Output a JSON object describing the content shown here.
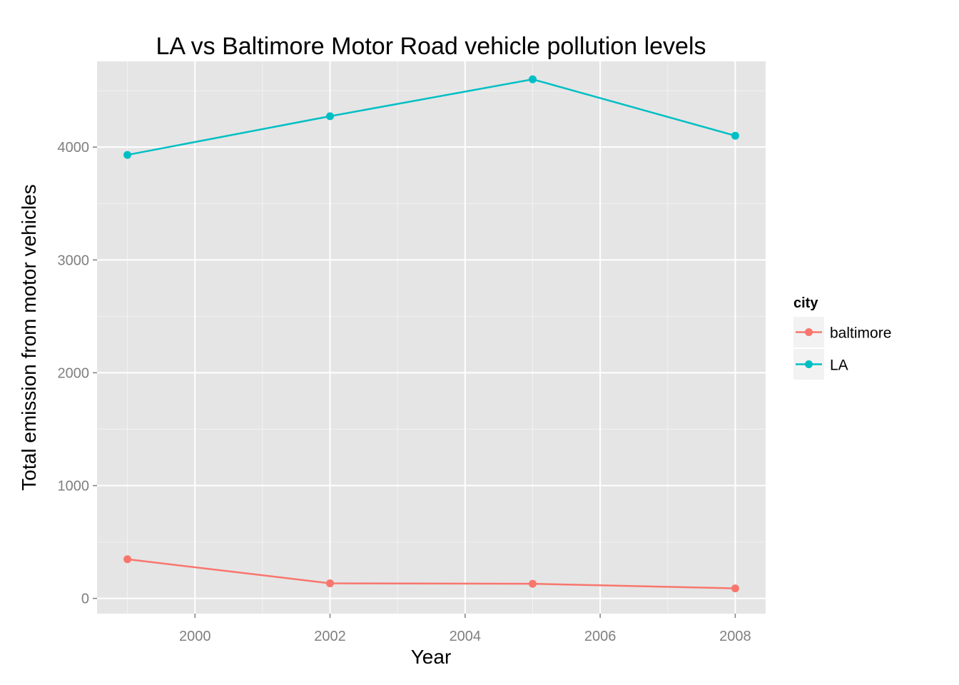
{
  "chart_data": {
    "type": "line",
    "title": "LA vs Baltimore Motor Road vehicle pollution levels",
    "xlabel": "Year",
    "ylabel": "Total emission from motor vehicles",
    "x": [
      1999,
      2002,
      2005,
      2008
    ],
    "xlim": [
      1998.55,
      2008.45
    ],
    "ylim": [
      -135,
      4760
    ],
    "x_ticks": [
      2000,
      2002,
      2004,
      2006,
      2008
    ],
    "y_ticks": [
      0,
      1000,
      2000,
      3000,
      4000
    ],
    "x_tick_labels": [
      "2000",
      "2002",
      "2004",
      "2006",
      "2008"
    ],
    "y_tick_labels": [
      "0",
      "1000",
      "2000",
      "3000",
      "4000"
    ],
    "grid": true,
    "legend": {
      "title": "city",
      "position": "right"
    },
    "series": [
      {
        "name": "baltimore",
        "color": "#F8766D",
        "values": [
          347,
          134,
          130,
          89
        ]
      },
      {
        "name": "LA",
        "color": "#00BFC4",
        "values": [
          3931,
          4274,
          4601,
          4101
        ]
      }
    ]
  }
}
